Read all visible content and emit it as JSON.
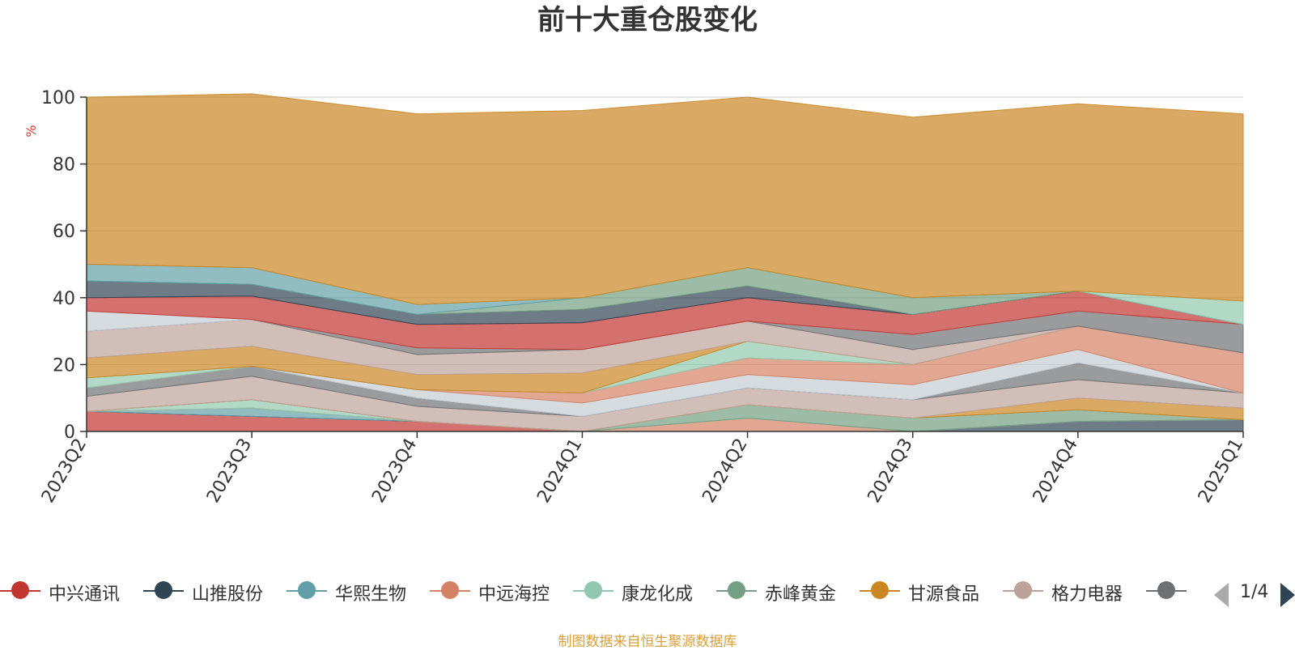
{
  "source_note": "制图数据来自恒生聚源数据库",
  "legend_pager": "1/4",
  "chart_data": {
    "type": "area",
    "stacked": true,
    "title": "前十大重仓股变化",
    "ylabel": "%",
    "ylim": [
      0,
      100
    ],
    "yticks": [
      0,
      20,
      40,
      60,
      80,
      100
    ],
    "grid": true,
    "legend_position": "bottom",
    "categories": [
      "2023Q2",
      "2023Q3",
      "2023Q4",
      "2024Q1",
      "2024Q2",
      "2024Q3",
      "2024Q4",
      "2025Q1"
    ],
    "series": [
      {
        "name": "中兴通讯",
        "color": "#c23531",
        "values": [
          6,
          4.5,
          3,
          0,
          0,
          0,
          0,
          0
        ]
      },
      {
        "name": "山推股份",
        "color": "#2f4554",
        "values": [
          0,
          0,
          0,
          0,
          0,
          0,
          3,
          3.5
        ]
      },
      {
        "name": "华熙生物",
        "color": "#61a0a8",
        "values": [
          0,
          2.5,
          0,
          0,
          0,
          0,
          0,
          0
        ]
      },
      {
        "name": "中远海控",
        "color": "#d48265",
        "values": [
          0,
          0,
          0,
          0,
          4,
          0,
          0,
          0
        ]
      },
      {
        "name": "康龙化成",
        "color": "#91c7ae",
        "values": [
          0,
          2.5,
          0,
          0,
          0,
          0,
          0,
          0
        ]
      },
      {
        "name": "赤峰黄金",
        "color": "#749f83",
        "values": [
          0,
          0,
          0,
          0,
          4,
          4,
          3.5,
          0
        ]
      },
      {
        "name": "甘源食品",
        "color": "#ca8622",
        "values": [
          0,
          0,
          0,
          0,
          0,
          0,
          3.5,
          3.5
        ]
      },
      {
        "name": "格力电器",
        "color": "#bda29a",
        "values": [
          4.5,
          7,
          4.5,
          4.5,
          5,
          5.5,
          5.5,
          4.5
        ]
      },
      {
        "name": "",
        "color": "#6e7074",
        "values": [
          2.5,
          3,
          2.5,
          0,
          0,
          0,
          5,
          0
        ]
      },
      {
        "name": "",
        "color": "#546570",
        "values": [
          0,
          0,
          0,
          0,
          0,
          0,
          0,
          0
        ]
      },
      {
        "name": "",
        "color": "#c4ccd3",
        "values": [
          0,
          0,
          2.5,
          4,
          4,
          4.5,
          4,
          0
        ]
      },
      {
        "name": "",
        "color": "#d48265",
        "values": [
          0,
          0,
          0,
          3,
          5,
          6,
          7,
          12
        ]
      },
      {
        "name": "",
        "color": "#91c7ae",
        "values": [
          3,
          0,
          0,
          0,
          5,
          0,
          0,
          0
        ]
      },
      {
        "name": "",
        "color": "#ca8622",
        "values": [
          6,
          6,
          4.5,
          6,
          0,
          0,
          0,
          0
        ]
      },
      {
        "name": "",
        "color": "#bda29a",
        "values": [
          8,
          8,
          6,
          7,
          6,
          4.5,
          0,
          0
        ]
      },
      {
        "name": "",
        "color": "#6e7074",
        "values": [
          0,
          0,
          2,
          0,
          0,
          4.5,
          4.5,
          8.5
        ]
      },
      {
        "name": "",
        "color": "#c4ccd3",
        "values": [
          6,
          0,
          0,
          0,
          0,
          0,
          0,
          0
        ]
      },
      {
        "name": "",
        "color": "#c23531",
        "values": [
          4,
          7,
          7,
          8,
          7,
          6,
          6,
          0
        ]
      },
      {
        "name": "",
        "color": "#2f4554",
        "values": [
          5,
          3.5,
          3,
          4,
          3.5,
          0,
          0,
          0
        ]
      },
      {
        "name": "",
        "color": "#749f83",
        "values": [
          0,
          0,
          0,
          3.5,
          5.5,
          5,
          0,
          0
        ]
      },
      {
        "name": "",
        "color": "#61a0a8",
        "values": [
          5,
          5,
          3,
          0,
          0,
          0,
          0,
          0
        ]
      },
      {
        "name": "",
        "color": "#91c7ae",
        "values": [
          0,
          0,
          0,
          0,
          0,
          0,
          0,
          7
        ]
      },
      {
        "name": "",
        "color": "#ca8622",
        "values": [
          50,
          52,
          57,
          56,
          51,
          54,
          56,
          56
        ]
      }
    ]
  }
}
